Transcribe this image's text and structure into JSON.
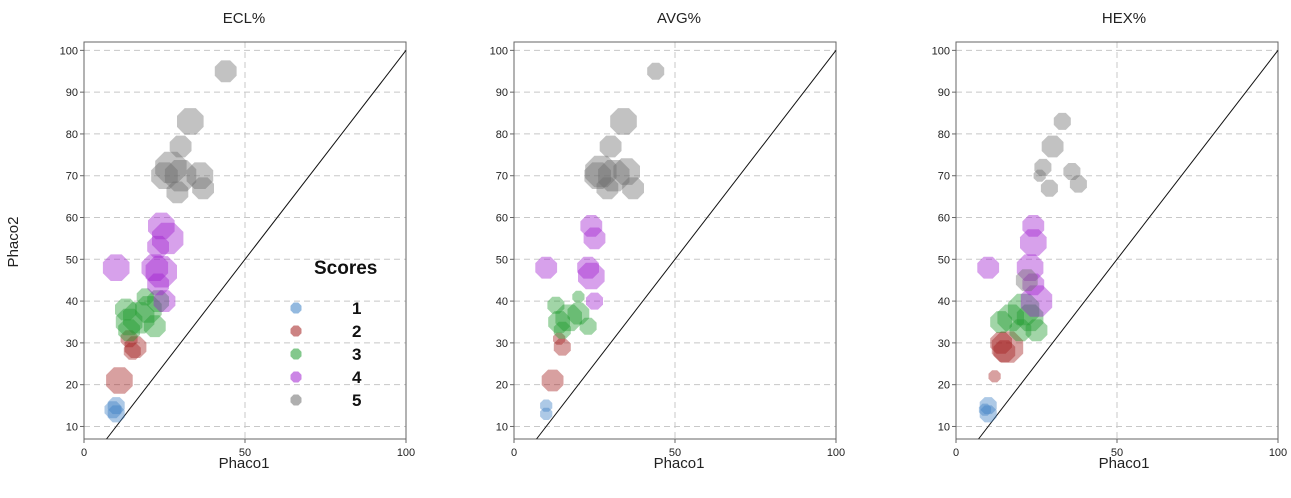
{
  "colors": {
    "score_1": "#3b7fc4",
    "score_2": "#a31d1d",
    "score_3": "#1e9a2e",
    "score_4": "#a020d0",
    "score_5": "#6e6e6e",
    "diagonal": "#111111",
    "grid": "#c8c8c8"
  },
  "chart_data": [
    {
      "type": "scatter",
      "title": "ECL%",
      "xlabel": "Phaco1",
      "ylabel": "Phaco2",
      "xlim": [
        0,
        100
      ],
      "ylim": [
        7,
        102
      ],
      "xticks": [
        "0",
        "50",
        "100"
      ],
      "yticks": [
        "10",
        "20",
        "30",
        "40",
        "50",
        "60",
        "70",
        "80",
        "90",
        "100"
      ],
      "grid": true,
      "reference_line": "y = x",
      "legend": {
        "title": "Scores",
        "entries": [
          "1",
          "2",
          "3",
          "4",
          "5"
        ],
        "placement": "right"
      },
      "series": [
        {
          "name": "1",
          "points": [
            [
              10,
              15,
              2
            ],
            [
              9,
              14,
              2
            ],
            [
              10,
              13,
              2
            ]
          ]
        },
        {
          "name": "2",
          "points": [
            [
              11,
              21,
              4
            ],
            [
              14,
              31,
              2
            ],
            [
              16,
              29,
              3
            ],
            [
              15,
              28,
              2
            ]
          ]
        },
        {
          "name": "3",
          "points": [
            [
              13,
              38,
              3
            ],
            [
              14,
              35,
              4
            ],
            [
              17,
              36,
              5
            ],
            [
              20,
              38,
              4
            ],
            [
              22,
              34,
              3
            ],
            [
              14,
              33,
              3
            ],
            [
              19,
              41,
              2
            ],
            [
              23,
              40,
              3
            ]
          ]
        },
        {
          "name": "4",
          "points": [
            [
              10,
              48,
              4
            ],
            [
              24,
              58,
              4
            ],
            [
              26,
              55,
              5
            ],
            [
              23,
              53,
              3
            ],
            [
              22,
              48,
              4
            ],
            [
              24,
              47,
              5
            ],
            [
              23,
              44,
              3
            ],
            [
              25,
              40,
              3
            ]
          ]
        },
        {
          "name": "5",
          "points": [
            [
              44,
              95,
              3
            ],
            [
              33,
              83,
              4
            ],
            [
              30,
              77,
              3
            ],
            [
              27,
              72,
              5
            ],
            [
              25,
              70,
              4
            ],
            [
              30,
              70,
              5
            ],
            [
              36,
              70,
              4
            ],
            [
              37,
              67,
              3
            ],
            [
              29,
              66,
              3
            ]
          ]
        }
      ]
    },
    {
      "type": "scatter",
      "title": "AVG%",
      "xlabel": "Phaco1",
      "ylabel": "",
      "xlim": [
        0,
        100
      ],
      "ylim": [
        7,
        102
      ],
      "xticks": [
        "0",
        "50",
        "100"
      ],
      "yticks": [
        "10",
        "20",
        "30",
        "40",
        "50",
        "60",
        "70",
        "80",
        "90",
        "100"
      ],
      "grid": true,
      "reference_line": "y = x",
      "series": [
        {
          "name": "1",
          "points": [
            [
              10,
              15,
              1
            ],
            [
              10,
              13,
              1
            ]
          ]
        },
        {
          "name": "2",
          "points": [
            [
              12,
              21,
              3
            ],
            [
              15,
              29,
              2
            ],
            [
              14,
              31,
              1
            ]
          ]
        },
        {
          "name": "3",
          "points": [
            [
              13,
              39,
              2
            ],
            [
              14,
              35,
              3
            ],
            [
              17,
              36,
              4
            ],
            [
              20,
              37,
              3
            ],
            [
              23,
              34,
              2
            ],
            [
              15,
              33,
              2
            ],
            [
              20,
              41,
              1
            ]
          ]
        },
        {
          "name": "4",
          "points": [
            [
              10,
              48,
              3
            ],
            [
              24,
              58,
              3
            ],
            [
              25,
              55,
              3
            ],
            [
              23,
              48,
              3
            ],
            [
              24,
              46,
              4
            ],
            [
              25,
              40,
              2
            ]
          ]
        },
        {
          "name": "5",
          "points": [
            [
              44,
              95,
              2
            ],
            [
              34,
              83,
              4
            ],
            [
              30,
              77,
              3
            ],
            [
              27,
              71,
              5
            ],
            [
              26,
              70,
              4
            ],
            [
              31,
              70,
              5
            ],
            [
              35,
              71,
              4
            ],
            [
              37,
              67,
              3
            ],
            [
              29,
              67,
              3
            ]
          ]
        }
      ]
    },
    {
      "type": "scatter",
      "title": "HEX%",
      "xlabel": "Phaco1",
      "ylabel": "",
      "xlim": [
        0,
        100
      ],
      "ylim": [
        7,
        102
      ],
      "xticks": [
        "0",
        "50",
        "100"
      ],
      "yticks": [
        "10",
        "20",
        "30",
        "40",
        "50",
        "60",
        "70",
        "80",
        "90",
        "100"
      ],
      "grid": true,
      "reference_line": "y = x",
      "series": [
        {
          "name": "1",
          "points": [
            [
              10,
              15,
              2
            ],
            [
              10,
              13,
              2
            ],
            [
              9,
              14,
              1
            ]
          ]
        },
        {
          "name": "2",
          "points": [
            [
              12,
              22,
              1
            ],
            [
              14,
              30,
              3
            ],
            [
              16,
              29,
              5
            ],
            [
              15,
              28,
              3
            ]
          ]
        },
        {
          "name": "3",
          "points": [
            [
              14,
              35,
              3
            ],
            [
              17,
              36,
              4
            ],
            [
              21,
              38,
              5
            ],
            [
              23,
              36,
              4
            ],
            [
              25,
              33,
              3
            ],
            [
              20,
              33,
              3
            ]
          ]
        },
        {
          "name": "4",
          "points": [
            [
              10,
              48,
              3
            ],
            [
              24,
              58,
              3
            ],
            [
              24,
              54,
              4
            ],
            [
              23,
              48,
              4
            ],
            [
              25,
              40,
              5
            ],
            [
              24,
              44,
              3
            ]
          ]
        },
        {
          "name": "5",
          "points": [
            [
              33,
              83,
              2
            ],
            [
              30,
              77,
              3
            ],
            [
              27,
              72,
              2
            ],
            [
              26,
              70,
              1
            ],
            [
              36,
              71,
              2
            ],
            [
              38,
              68,
              2
            ],
            [
              29,
              67,
              2
            ],
            [
              22,
              45,
              3
            ]
          ]
        }
      ]
    }
  ]
}
